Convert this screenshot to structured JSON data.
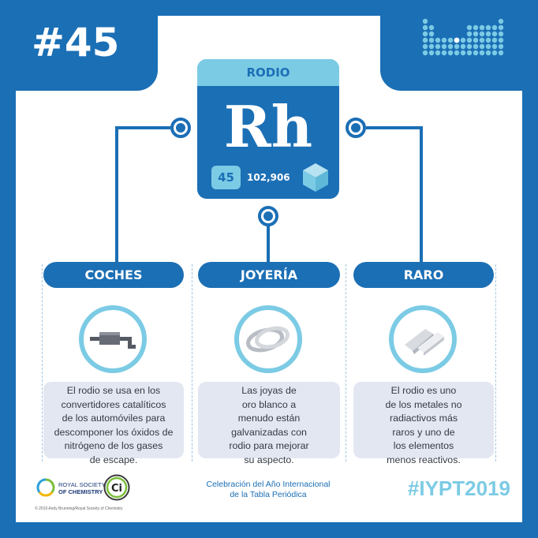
{
  "badge": {
    "number": "#45"
  },
  "element": {
    "name": "RODIO",
    "symbol": "Rh",
    "atomic_number": "45",
    "atomic_mass": "102,906"
  },
  "columns": [
    {
      "title": "COCHES",
      "icon": "exhaust-muffler-icon",
      "lines": [
        "El rodio se usa en los",
        "convertidores catalíticos",
        "de los automóviles para",
        "descomponer los óxidos de",
        "nitrógeno de los gases",
        "de escape."
      ]
    },
    {
      "title": "JOYERÍA",
      "icon": "rings-icon",
      "lines": [
        "Las joyas de",
        "oro blanco a",
        "menudo están",
        "galvanizadas con",
        "rodio para mejorar",
        "su aspecto."
      ]
    },
    {
      "title": "RARO",
      "icon": "metal-pieces-icon",
      "lines": [
        "El rodio es uno",
        "de los metales no",
        "radiactivos más",
        "raros y uno de",
        "los elementos",
        "menos reactivos."
      ]
    }
  ],
  "footer": {
    "rsc_line1": "ROYAL SOCIETY",
    "rsc_line2": "OF CHEMISTRY",
    "ci_label": "Ci",
    "copyright": "© 2019 Andy Brunning/Royal Society of Chemistry",
    "celebration_line1": "Celebración del Año Internacional",
    "celebration_line2": "de la Tabla Periódica",
    "hashtag": "#IYPT2019"
  },
  "colors": {
    "primary": "#1b6fb5",
    "accent": "#7ccbe5",
    "card_bg": "#e3e7f1",
    "text": "#333a45"
  }
}
